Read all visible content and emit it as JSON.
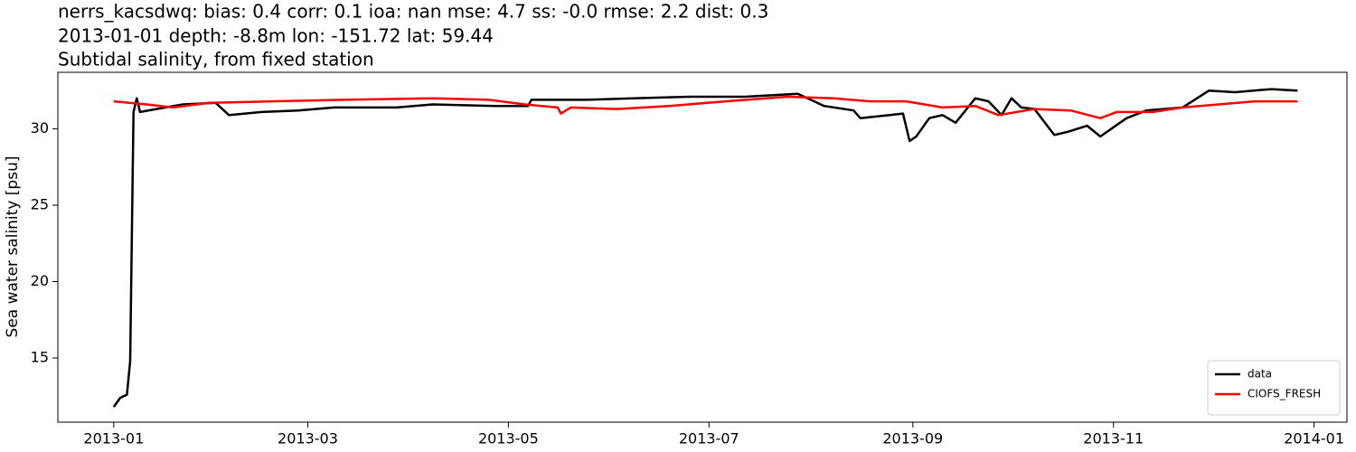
{
  "chart_data": {
    "type": "line",
    "title": [
      "nerrs_kacsdwq: bias: 0.4  corr: 0.1  ioa: nan  mse: 4.7  ss: -0.0  rmse: 2.2  dist: 0.3",
      "2013-01-01 depth: -8.8m lon: -151.72 lat: 59.44",
      "Subtidal salinity, from fixed station"
    ],
    "ylabel": "Sea water salinity [psu]",
    "xlim": [
      "2012-12-15",
      "2014-01-11"
    ],
    "xticks": [
      {
        "value": "2013-01-01",
        "label": "2013-01"
      },
      {
        "value": "2013-03-01",
        "label": "2013-03"
      },
      {
        "value": "2013-05-01",
        "label": "2013-05"
      },
      {
        "value": "2013-07-01",
        "label": "2013-07"
      },
      {
        "value": "2013-09-01",
        "label": "2013-09"
      },
      {
        "value": "2013-11-01",
        "label": "2013-11"
      },
      {
        "value": "2014-01-01",
        "label": "2014-01"
      }
    ],
    "ylim": [
      10.8,
      33.7
    ],
    "yticks": [
      15,
      20,
      25,
      30
    ],
    "legend": "lower right",
    "series": [
      {
        "name": "data",
        "color": "#000000",
        "x": [
          "2013-01-01",
          "2013-01-03",
          "2013-01-05",
          "2013-01-06",
          "2013-01-07",
          "2013-01-08",
          "2013-01-09",
          "2013-01-14",
          "2013-01-22",
          "2013-02-01",
          "2013-02-05",
          "2013-02-15",
          "2013-02-26",
          "2013-03-09",
          "2013-03-28",
          "2013-04-08",
          "2013-04-27",
          "2013-05-07",
          "2013-05-08",
          "2013-05-25",
          "2013-06-08",
          "2013-06-25",
          "2013-07-12",
          "2013-07-28",
          "2013-08-05",
          "2013-08-14",
          "2013-08-16",
          "2013-08-25",
          "2013-08-29",
          "2013-08-31",
          "2013-09-02",
          "2013-09-06",
          "2013-09-10",
          "2013-09-14",
          "2013-09-20",
          "2013-09-24",
          "2013-09-28",
          "2013-10-01",
          "2013-10-04",
          "2013-10-08",
          "2013-10-14",
          "2013-10-18",
          "2013-10-24",
          "2013-10-28",
          "2013-11-01",
          "2013-11-05",
          "2013-11-11",
          "2013-11-22",
          "2013-11-30",
          "2013-12-08",
          "2013-12-19",
          "2013-12-27"
        ],
        "values": [
          11.8,
          12.4,
          12.6,
          14.8,
          31.1,
          32.0,
          31.1,
          31.3,
          31.6,
          31.7,
          30.9,
          31.1,
          31.2,
          31.4,
          31.4,
          31.6,
          31.5,
          31.5,
          31.9,
          31.9,
          32.0,
          32.1,
          32.1,
          32.3,
          31.5,
          31.2,
          30.7,
          30.9,
          31.0,
          29.2,
          29.5,
          30.7,
          30.9,
          30.4,
          32.0,
          31.8,
          30.9,
          32.0,
          31.4,
          31.3,
          29.6,
          29.8,
          30.2,
          29.5,
          30.1,
          30.7,
          31.2,
          31.4,
          32.5,
          32.4,
          32.6,
          32.5
        ]
      },
      {
        "name": "CIOFS_FRESH",
        "color": "#ff0000",
        "x": [
          "2013-01-01",
          "2013-01-11",
          "2013-01-19",
          "2013-01-30",
          "2013-02-18",
          "2013-03-12",
          "2013-04-08",
          "2013-04-25",
          "2013-05-06",
          "2013-05-16",
          "2013-05-17",
          "2013-05-20",
          "2013-06-03",
          "2013-06-19",
          "2013-07-06",
          "2013-07-25",
          "2013-08-08",
          "2013-08-19",
          "2013-08-30",
          "2013-09-10",
          "2013-09-20",
          "2013-09-27",
          "2013-10-08",
          "2013-10-19",
          "2013-10-28",
          "2013-11-02",
          "2013-11-13",
          "2013-11-22",
          "2013-12-03",
          "2013-12-14",
          "2013-12-27"
        ],
        "values": [
          31.8,
          31.6,
          31.4,
          31.7,
          31.8,
          31.9,
          32.0,
          31.9,
          31.6,
          31.4,
          31.0,
          31.4,
          31.3,
          31.5,
          31.8,
          32.1,
          32.0,
          31.8,
          31.8,
          31.4,
          31.5,
          30.9,
          31.3,
          31.2,
          30.7,
          31.1,
          31.1,
          31.4,
          31.6,
          31.8,
          31.8
        ]
      }
    ]
  }
}
